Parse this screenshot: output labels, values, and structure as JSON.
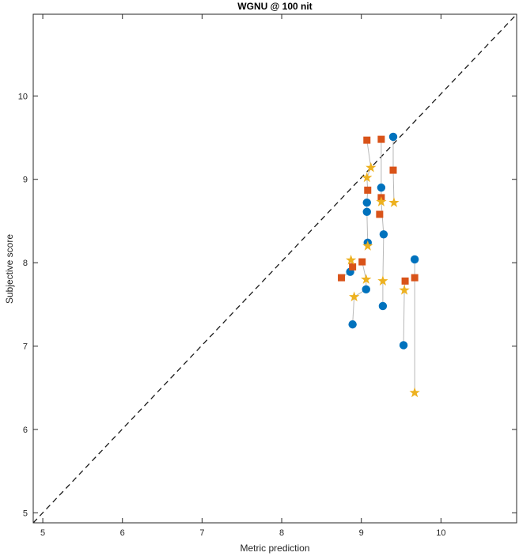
{
  "title": "WGNU @ 100 nit",
  "axes": {
    "xlabel": "Metric prediction",
    "ylabel": "Subjective score"
  },
  "colors": {
    "circle_series": "#0072BD",
    "square_series": "#D95319",
    "star_series": "#EDB120",
    "connector": "#b8b8b8",
    "axis": "#262626",
    "identity_line": "#1a1a1a",
    "plot_background": "#ffffff",
    "figure_background": "#ffffff"
  },
  "chart_data": {
    "type": "scatter",
    "title": "WGNU @ 100 nit",
    "xlabel": "Metric prediction",
    "ylabel": "Subjective score",
    "xlim": [
      4.88,
      10.95
    ],
    "ylim": [
      4.88,
      10.98
    ],
    "x_ticks": [
      5,
      6,
      7,
      8,
      9,
      10
    ],
    "y_ticks": [
      5,
      6,
      7,
      8,
      9,
      10
    ],
    "grid": false,
    "legend": "none",
    "identity_line": {
      "style": "dashed",
      "from": [
        4.88,
        4.88
      ],
      "to": [
        10.95,
        10.98
      ]
    },
    "series": [
      {
        "name": "circle-series",
        "marker": "circle",
        "color": "#0072BD",
        "points": [
          [
            9.4,
            9.51
          ],
          [
            9.25,
            8.9
          ],
          [
            9.07,
            8.72
          ],
          [
            9.07,
            8.61
          ],
          [
            9.28,
            8.34
          ],
          [
            9.08,
            8.24
          ],
          [
            9.67,
            8.04
          ],
          [
            8.86,
            7.89
          ],
          [
            9.06,
            7.68
          ],
          [
            9.27,
            7.48
          ],
          [
            8.89,
            7.26
          ],
          [
            9.53,
            7.01
          ]
        ]
      },
      {
        "name": "square-series",
        "marker": "square",
        "color": "#D95319",
        "points": [
          [
            9.07,
            9.47
          ],
          [
            9.25,
            9.48
          ],
          [
            9.4,
            9.11
          ],
          [
            9.08,
            8.87
          ],
          [
            9.25,
            8.78
          ],
          [
            9.23,
            8.58
          ],
          [
            9.01,
            8.01
          ],
          [
            8.89,
            7.95
          ],
          [
            8.75,
            7.82
          ],
          [
            9.55,
            7.78
          ],
          [
            9.67,
            7.82
          ]
        ]
      },
      {
        "name": "star-series",
        "marker": "star",
        "color": "#EDB120",
        "points": [
          [
            9.12,
            9.14
          ],
          [
            9.07,
            9.02
          ],
          [
            9.25,
            8.73
          ],
          [
            9.41,
            8.72
          ],
          [
            9.08,
            8.2
          ],
          [
            8.87,
            8.03
          ],
          [
            9.06,
            7.8
          ],
          [
            9.27,
            7.78
          ],
          [
            8.91,
            7.59
          ],
          [
            9.54,
            7.67
          ],
          [
            9.67,
            6.44
          ]
        ]
      }
    ],
    "connectors": {
      "color": "#b8b8b8",
      "paths": [
        [
          [
            9.07,
            9.47
          ],
          [
            9.12,
            9.14
          ],
          [
            9.07,
            9.02
          ],
          [
            9.08,
            8.87
          ],
          [
            9.07,
            8.72
          ],
          [
            9.07,
            8.61
          ],
          [
            9.08,
            8.24
          ],
          [
            9.08,
            8.2
          ]
        ],
        [
          [
            9.25,
            9.48
          ],
          [
            9.25,
            8.9
          ],
          [
            9.25,
            8.78
          ],
          [
            9.25,
            8.73
          ],
          [
            9.28,
            8.34
          ],
          [
            9.27,
            7.78
          ],
          [
            9.27,
            7.48
          ]
        ],
        [
          [
            9.4,
            9.51
          ],
          [
            9.4,
            9.11
          ],
          [
            9.41,
            8.72
          ]
        ],
        [
          [
            8.87,
            8.03
          ],
          [
            8.89,
            7.95
          ],
          [
            8.86,
            7.89
          ],
          [
            8.75,
            7.82
          ]
        ],
        [
          [
            9.01,
            8.01
          ],
          [
            9.06,
            7.8
          ],
          [
            9.06,
            7.68
          ],
          [
            8.91,
            7.59
          ],
          [
            8.89,
            7.26
          ]
        ],
        [
          [
            9.55,
            7.78
          ],
          [
            9.54,
            7.67
          ],
          [
            9.53,
            7.01
          ]
        ],
        [
          [
            9.67,
            8.04
          ],
          [
            9.67,
            7.82
          ],
          [
            9.67,
            6.44
          ]
        ]
      ]
    }
  }
}
